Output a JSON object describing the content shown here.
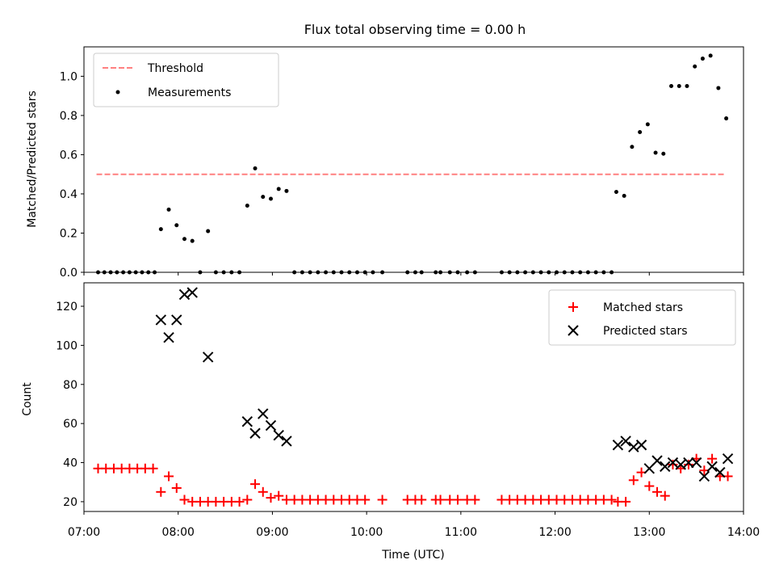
{
  "chart_data": [
    {
      "type": "scatter",
      "title": "Flux total observing time = 0.00 h",
      "xlabel": "",
      "ylabel": "Matched/Predicted stars",
      "xlim_hours": [
        7.0,
        14.0
      ],
      "ylim": [
        0,
        1.15
      ],
      "x_ticks": [],
      "y_ticks": [
        0.0,
        0.2,
        0.4,
        0.6,
        0.8,
        1.0
      ],
      "y_tick_labels": [
        "0.0",
        "0.2",
        "0.4",
        "0.6",
        "0.8",
        "1.0"
      ],
      "legend": {
        "placement": "upper-left",
        "entries": [
          "Threshold",
          "Measurements"
        ]
      },
      "threshold": {
        "name": "Threshold",
        "value": 0.5,
        "x_range": [
          "07:08",
          "13:48"
        ],
        "color": "#ff8080",
        "style": "dashed"
      },
      "series": [
        {
          "name": "Measurements",
          "marker": "dot",
          "color": "#000000",
          "points": [
            [
              "07:09",
              0
            ],
            [
              "07:13",
              0
            ],
            [
              "07:17",
              0
            ],
            [
              "07:21",
              0
            ],
            [
              "07:25",
              0
            ],
            [
              "07:29",
              0
            ],
            [
              "07:33",
              0
            ],
            [
              "07:37",
              0
            ],
            [
              "07:41",
              0
            ],
            [
              "07:45",
              0
            ],
            [
              "07:49",
              0.22
            ],
            [
              "07:54",
              0.32
            ],
            [
              "07:59",
              0.24
            ],
            [
              "08:04",
              0.17
            ],
            [
              "08:09",
              0.16
            ],
            [
              "08:14",
              0
            ],
            [
              "08:19",
              0.21
            ],
            [
              "08:24",
              0
            ],
            [
              "08:29",
              0
            ],
            [
              "08:34",
              0
            ],
            [
              "08:39",
              0
            ],
            [
              "08:44",
              0.34
            ],
            [
              "08:49",
              0.53
            ],
            [
              "08:54",
              0.385
            ],
            [
              "08:59",
              0.375
            ],
            [
              "09:04",
              0.425
            ],
            [
              "09:09",
              0.415
            ],
            [
              "09:14",
              0
            ],
            [
              "09:19",
              0
            ],
            [
              "09:24",
              0
            ],
            [
              "09:29",
              0
            ],
            [
              "09:34",
              0
            ],
            [
              "09:39",
              0
            ],
            [
              "09:44",
              0
            ],
            [
              "09:49",
              0
            ],
            [
              "09:54",
              0
            ],
            [
              "09:59",
              0
            ],
            [
              "10:04",
              0
            ],
            [
              "10:10",
              0
            ],
            [
              "10:26",
              0
            ],
            [
              "10:31",
              0
            ],
            [
              "10:35",
              0
            ],
            [
              "10:44",
              0
            ],
            [
              "10:47",
              0
            ],
            [
              "10:53",
              0
            ],
            [
              "10:58",
              0
            ],
            [
              "11:04",
              0
            ],
            [
              "11:09",
              0
            ],
            [
              "11:26",
              0
            ],
            [
              "11:31",
              0
            ],
            [
              "11:36",
              0
            ],
            [
              "11:41",
              0
            ],
            [
              "11:46",
              0
            ],
            [
              "11:51",
              0
            ],
            [
              "11:56",
              0
            ],
            [
              "12:01",
              0
            ],
            [
              "12:06",
              0
            ],
            [
              "12:11",
              0
            ],
            [
              "12:16",
              0
            ],
            [
              "12:21",
              0
            ],
            [
              "12:26",
              0
            ],
            [
              "12:31",
              0
            ],
            [
              "12:36",
              0
            ],
            [
              "12:39",
              0.41
            ],
            [
              "12:44",
              0.39
            ],
            [
              "12:49",
              0.64
            ],
            [
              "12:54",
              0.715
            ],
            [
              "12:59",
              0.755
            ],
            [
              "13:04",
              0.61
            ],
            [
              "13:09",
              0.605
            ],
            [
              "13:14",
              0.95
            ],
            [
              "13:19",
              0.95
            ],
            [
              "13:24",
              0.95
            ],
            [
              "13:29",
              1.05
            ],
            [
              "13:34",
              1.09
            ],
            [
              "13:39",
              1.105
            ],
            [
              "13:44",
              0.94
            ],
            [
              "13:49",
              0.785
            ]
          ]
        }
      ]
    },
    {
      "type": "scatter",
      "title": "",
      "xlabel": "Time (UTC)",
      "ylabel": "Count",
      "xlim_hours": [
        7.0,
        14.0
      ],
      "ylim": [
        15,
        132
      ],
      "x_ticks": [
        7,
        8,
        9,
        10,
        11,
        12,
        13,
        14
      ],
      "x_tick_labels": [
        "07:00",
        "08:00",
        "09:00",
        "10:00",
        "11:00",
        "12:00",
        "13:00",
        "14:00"
      ],
      "y_ticks": [
        20,
        40,
        60,
        80,
        100,
        120
      ],
      "y_tick_labels": [
        "20",
        "40",
        "60",
        "80",
        "100",
        "120"
      ],
      "legend": {
        "placement": "upper-right",
        "entries": [
          "Matched stars",
          "Predicted stars"
        ]
      },
      "series": [
        {
          "name": "Matched stars",
          "marker": "plus",
          "color": "#ff0000",
          "points": [
            [
              "07:09",
              37
            ],
            [
              "07:14",
              37
            ],
            [
              "07:19",
              37
            ],
            [
              "07:24",
              37
            ],
            [
              "07:29",
              37
            ],
            [
              "07:34",
              37
            ],
            [
              "07:39",
              37
            ],
            [
              "07:44",
              37
            ],
            [
              "07:49",
              25
            ],
            [
              "07:54",
              33
            ],
            [
              "07:59",
              27
            ],
            [
              "08:04",
              21
            ],
            [
              "08:09",
              20
            ],
            [
              "08:14",
              20
            ],
            [
              "08:19",
              20
            ],
            [
              "08:24",
              20
            ],
            [
              "08:29",
              20
            ],
            [
              "08:34",
              20
            ],
            [
              "08:39",
              20
            ],
            [
              "08:44",
              21
            ],
            [
              "08:49",
              29
            ],
            [
              "08:54",
              25
            ],
            [
              "08:59",
              22
            ],
            [
              "09:04",
              23
            ],
            [
              "09:09",
              21
            ],
            [
              "09:14",
              21
            ],
            [
              "09:19",
              21
            ],
            [
              "09:24",
              21
            ],
            [
              "09:29",
              21
            ],
            [
              "09:34",
              21
            ],
            [
              "09:39",
              21
            ],
            [
              "09:44",
              21
            ],
            [
              "09:49",
              21
            ],
            [
              "09:54",
              21
            ],
            [
              "09:59",
              21
            ],
            [
              "10:10",
              21
            ],
            [
              "10:26",
              21
            ],
            [
              "10:31",
              21
            ],
            [
              "10:35",
              21
            ],
            [
              "10:44",
              21
            ],
            [
              "10:47",
              21
            ],
            [
              "10:53",
              21
            ],
            [
              "10:58",
              21
            ],
            [
              "11:04",
              21
            ],
            [
              "11:09",
              21
            ],
            [
              "11:26",
              21
            ],
            [
              "11:31",
              21
            ],
            [
              "11:36",
              21
            ],
            [
              "11:41",
              21
            ],
            [
              "11:46",
              21
            ],
            [
              "11:51",
              21
            ],
            [
              "11:56",
              21
            ],
            [
              "12:01",
              21
            ],
            [
              "12:06",
              21
            ],
            [
              "12:11",
              21
            ],
            [
              "12:16",
              21
            ],
            [
              "12:21",
              21
            ],
            [
              "12:26",
              21
            ],
            [
              "12:31",
              21
            ],
            [
              "12:36",
              21
            ],
            [
              "12:40",
              20
            ],
            [
              "12:45",
              20
            ],
            [
              "12:50",
              31
            ],
            [
              "12:55",
              35
            ],
            [
              "13:00",
              28
            ],
            [
              "13:05",
              25
            ],
            [
              "13:10",
              23
            ],
            [
              "13:15",
              39
            ],
            [
              "13:20",
              37
            ],
            [
              "13:25",
              39
            ],
            [
              "13:30",
              42
            ],
            [
              "13:35",
              36
            ],
            [
              "13:40",
              42
            ],
            [
              "13:45",
              33
            ],
            [
              "13:50",
              33
            ]
          ]
        },
        {
          "name": "Predicted stars",
          "marker": "x",
          "color": "#000000",
          "points": [
            [
              "07:49",
              113
            ],
            [
              "07:54",
              104
            ],
            [
              "07:59",
              113
            ],
            [
              "08:04",
              126
            ],
            [
              "08:09",
              127
            ],
            [
              "08:19",
              94
            ],
            [
              "08:44",
              61
            ],
            [
              "08:49",
              55
            ],
            [
              "08:54",
              65
            ],
            [
              "08:59",
              59
            ],
            [
              "09:04",
              54
            ],
            [
              "09:09",
              51
            ],
            [
              "12:40",
              49
            ],
            [
              "12:45",
              51
            ],
            [
              "12:50",
              48
            ],
            [
              "12:55",
              49
            ],
            [
              "13:00",
              37
            ],
            [
              "13:05",
              41
            ],
            [
              "13:10",
              38
            ],
            [
              "13:15",
              40
            ],
            [
              "13:20",
              39
            ],
            [
              "13:25",
              40
            ],
            [
              "13:30",
              40
            ],
            [
              "13:35",
              33
            ],
            [
              "13:40",
              38
            ],
            [
              "13:45",
              35
            ],
            [
              "13:50",
              42
            ]
          ]
        }
      ]
    }
  ]
}
